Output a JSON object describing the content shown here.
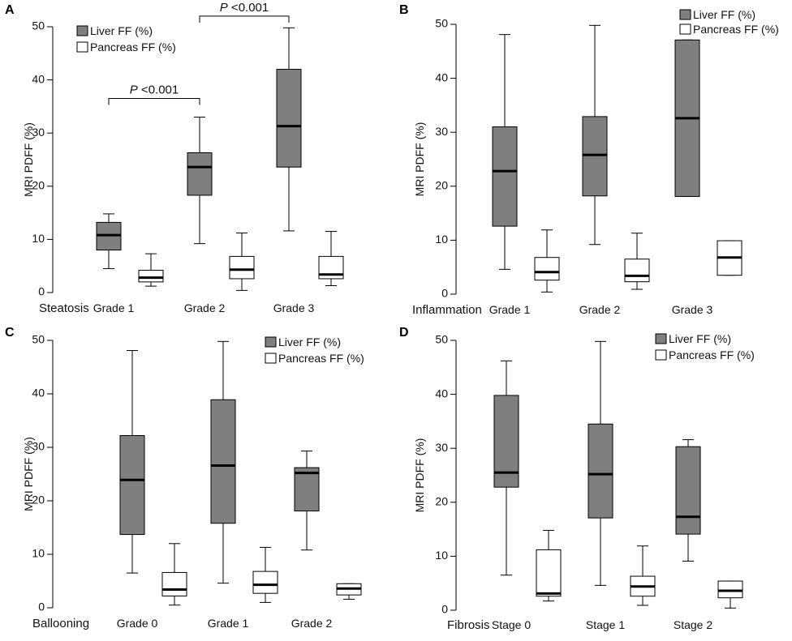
{
  "chart_data": [
    {
      "panel": "A",
      "type": "box",
      "xlabel": "Steatosis",
      "ylabel": "MRI PDFF (%)",
      "ylim": [
        0,
        50
      ],
      "yticks": [
        0,
        10,
        20,
        30,
        40,
        50
      ],
      "categories": [
        "Grade 1",
        "Grade 2",
        "Grade 3"
      ],
      "legend": [
        "Liver FF (%)",
        "Pancreas FF (%)"
      ],
      "legend_position": "top-left",
      "series": [
        {
          "name": "Liver FF (%)",
          "color": "#7f7f7f",
          "boxes": [
            {
              "min": 4.5,
              "q1": 8,
              "median": 10.8,
              "q3": 13.2,
              "max": 14.8
            },
            {
              "min": 9.2,
              "q1": 18.3,
              "median": 23.6,
              "q3": 26.3,
              "max": 33
            },
            {
              "min": 11.6,
              "q1": 23.6,
              "median": 31.3,
              "q3": 42,
              "max": 49.8
            }
          ]
        },
        {
          "name": "Pancreas FF (%)",
          "color": "#ffffff",
          "boxes": [
            {
              "min": 1.2,
              "q1": 2,
              "median": 2.8,
              "q3": 4.2,
              "max": 7.3
            },
            {
              "min": 0.4,
              "q1": 2.6,
              "median": 4.3,
              "q3": 6.8,
              "max": 11.2
            },
            {
              "min": 1.3,
              "q1": 2.6,
              "median": 3.4,
              "q3": 6.8,
              "max": 11.5
            }
          ]
        }
      ],
      "annotations": [
        {
          "text_p": "P",
          "text_rest": " <0.001",
          "from": "Grade 1",
          "to": "Grade 2",
          "y": 36.5
        },
        {
          "text_p": "P",
          "text_rest": " <0.001",
          "from": "Grade 2",
          "to": "Grade 3",
          "y": 52
        }
      ]
    },
    {
      "panel": "B",
      "type": "box",
      "xlabel": "Inflammation",
      "ylabel": "MRI PDFF (%)",
      "ylim": [
        0,
        50
      ],
      "yticks": [
        0,
        10,
        20,
        30,
        40,
        50
      ],
      "categories": [
        "Grade 1",
        "Grade 2",
        "Grade 3"
      ],
      "legend": [
        "Liver FF (%)",
        "Pancreas FF (%)"
      ],
      "legend_position": "top-right",
      "series": [
        {
          "name": "Liver FF (%)",
          "color": "#7f7f7f",
          "boxes": [
            {
              "min": 4.6,
              "q1": 12.6,
              "median": 22.8,
              "q3": 31,
              "max": 48.1
            },
            {
              "min": 9.2,
              "q1": 18.2,
              "median": 25.8,
              "q3": 32.9,
              "max": 49.8
            },
            {
              "min": 18.1,
              "q1": 18.1,
              "median": 32.6,
              "q3": 47.1,
              "max": 47.1
            }
          ]
        },
        {
          "name": "Pancreas FF (%)",
          "color": "#ffffff",
          "boxes": [
            {
              "min": 0.4,
              "q1": 2.6,
              "median": 4.1,
              "q3": 6.8,
              "max": 11.9
            },
            {
              "min": 0.9,
              "q1": 2.3,
              "median": 3.4,
              "q3": 6.5,
              "max": 11.3
            },
            {
              "min": 3.5,
              "q1": 3.5,
              "median": 6.8,
              "q3": 9.9,
              "max": 9.9
            }
          ]
        }
      ],
      "annotations": []
    },
    {
      "panel": "C",
      "type": "box",
      "xlabel": "Ballooning",
      "ylabel": "MRI PDFF (%)",
      "ylim": [
        0,
        50
      ],
      "yticks": [
        0,
        10,
        20,
        30,
        40,
        50
      ],
      "categories": [
        "Grade 0",
        "Grade 1",
        "Grade 2"
      ],
      "legend": [
        "Liver FF (%)",
        "Pancreas FF (%)"
      ],
      "legend_position": "top-right",
      "series": [
        {
          "name": "Liver FF (%)",
          "color": "#7f7f7f",
          "boxes": [
            {
              "min": 6.5,
              "q1": 13.7,
              "median": 23.9,
              "q3": 32.2,
              "max": 48.1
            },
            {
              "min": 4.6,
              "q1": 15.8,
              "median": 26.6,
              "q3": 38.9,
              "max": 49.8
            },
            {
              "min": 10.8,
              "q1": 18.1,
              "median": 25.2,
              "q3": 26.2,
              "max": 29.3
            }
          ]
        },
        {
          "name": "Pancreas FF (%)",
          "color": "#ffffff",
          "boxes": [
            {
              "min": 0.5,
              "q1": 2.2,
              "median": 3.4,
              "q3": 6.6,
              "max": 12
            },
            {
              "min": 1,
              "q1": 2.7,
              "median": 4.3,
              "q3": 6.8,
              "max": 11.3
            },
            {
              "min": 1.6,
              "q1": 2.4,
              "median": 3.6,
              "q3": 4.5,
              "max": 4.5
            }
          ]
        }
      ],
      "annotations": []
    },
    {
      "panel": "D",
      "type": "box",
      "xlabel": "Fibrosis",
      "ylabel": "MRI PDFF (%)",
      "ylim": [
        0,
        50
      ],
      "yticks": [
        0,
        10,
        20,
        30,
        40,
        50
      ],
      "categories": [
        "Stage 0",
        "Stage 1",
        "Stage 2"
      ],
      "legend": [
        "Liver FF (%)",
        "Pancreas FF (%)"
      ],
      "legend_position": "top-right",
      "series": [
        {
          "name": "Liver FF (%)",
          "color": "#7f7f7f",
          "boxes": [
            {
              "min": 6.5,
              "q1": 22.8,
              "median": 25.5,
              "q3": 39.8,
              "max": 46.2
            },
            {
              "min": 4.6,
              "q1": 17.1,
              "median": 25.2,
              "q3": 34.5,
              "max": 49.8
            },
            {
              "min": 9.1,
              "q1": 14.1,
              "median": 17.3,
              "q3": 30.3,
              "max": 31.6
            }
          ]
        },
        {
          "name": "Pancreas FF (%)",
          "color": "#ffffff",
          "boxes": [
            {
              "min": 1.7,
              "q1": 2.6,
              "median": 3.1,
              "q3": 11.2,
              "max": 14.8
            },
            {
              "min": 0.9,
              "q1": 2.6,
              "median": 4.4,
              "q3": 6.3,
              "max": 11.9
            },
            {
              "min": 0.4,
              "q1": 2.3,
              "median": 3.6,
              "q3": 5.4,
              "max": 5.4
            }
          ]
        }
      ],
      "annotations": []
    }
  ]
}
